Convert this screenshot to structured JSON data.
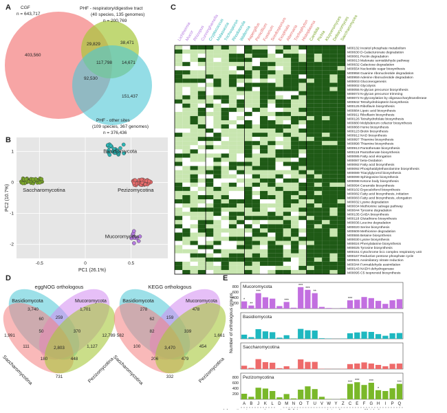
{
  "panels": {
    "a": "A",
    "b": "B",
    "c": "C",
    "d": "D",
    "e": "E"
  },
  "venn": {
    "sets": [
      {
        "label": "CGF",
        "count": "n = 643,717",
        "color": "#f47f7f"
      },
      {
        "label": "PHF - respiratory/digestive tract",
        "sub": "(40 species, 135 genomes)",
        "count": "n = 200,769",
        "color": "#a6c83a"
      },
      {
        "label": "PHF - other sites",
        "sub": "(109 species, 367 genomes)",
        "count": "n = 376,436",
        "color": "#4cc6d6"
      }
    ],
    "regions": {
      "cgf_only": "403,560",
      "phfr_only": "38,471",
      "phfo_only": "151,437",
      "cgf_phfr": "29,829",
      "cgf_phfo": "92,530",
      "phfr_phfo": "14,671",
      "all": "117,798"
    }
  },
  "pca": {
    "xlabel": "PC1 (26.1%)",
    "ylabel": "PC2 (10.7%)",
    "xticks": [
      "-0.5",
      "0",
      "0.5"
    ],
    "yticks": [
      "1",
      "0",
      "-1",
      "-2"
    ],
    "groups": [
      {
        "name": "Basidiomycota",
        "color": "#2cb5b5"
      },
      {
        "name": "Saccharomycotina",
        "color": "#7aa52a"
      },
      {
        "name": "Pezizomycotina",
        "color": "#e56b6b"
      },
      {
        "name": "Mucoromycota",
        "color": "#b57be0"
      }
    ]
  },
  "heatmap": {
    "modules": [
      "M00132 Inositol phosphate metabolism",
      "M00630 D-Galacturonate degradation",
      "M00081 Pectin degradation",
      "M00013 Malonate semialdehyde pathway",
      "M00632 Galactose degradation",
      "M00554 Nucleotide sugar biosynthesis",
      "M00958 Guanine ribonucleotide degradation",
      "M00959 Adenine ribonucleotide degradation",
      "M00003 Gluconeogenesis",
      "M00002 Glycolysis",
      "M00055 N-glycan precursor biosynthesis",
      "M00073 N-glycan precursor trimming",
      "M00072 N-glycosylation by oligosaccharyltransferase",
      "M00842 Tetrahydrobiopterin biosynthesis",
      "M00125 Riboflavin biosynthesis",
      "M00884 Lipoic acid biosynthesis",
      "M00911 Riboflavin biosynthesis",
      "M00126 Tetrahydrofolate biosynthesis",
      "M00880 Molybdenum cofactor biosynthesis",
      "M00868 Heme biosynthesis",
      "M00123 Biotin biosynthesis",
      "M00912 NAD biosynthesis",
      "M00897 Thiamine biosynthesis",
      "M00898 Thiamine biosynthesis",
      "M00913 Pantothenate biosynthesis",
      "M00119 Pantothenate biosynthesis",
      "M00085 Fatty acid elongation",
      "M00087 beta-Oxidation",
      "M00082 Fatty acid biosynthesis",
      "M00092 Phosphatidylethanolamine biosynthesis",
      "M00089 Triacylglycerol biosynthesis",
      "M00099 Sphingosine biosynthesis",
      "M00088 Ketone body biosynthesis",
      "M00094 Ceramide biosynthesis",
      "M00102 Ergocalciferol biosynthesis",
      "M00082 Fatty acid biosynthesis, initiation",
      "M00083 Fatty acid biosynthesis, elongation",
      "M00032 Lysine degradation",
      "M00034 Methionine salvage pathway",
      "M00044 Tyrosine degradation",
      "M00135 GABA biosynthesis",
      "M00118 Glutathione biosynthesis",
      "M00036 Leucine degradation",
      "M00020 Serine biosynthesis",
      "M00609 Methionine degradation",
      "M00555 Betaine biosynthesis",
      "M00030 Lysine biosynthesis",
      "M00024 Phenylalanine biosynthesis",
      "M00025 Tyrosine biosynthesis",
      "M00151 Cytochrome bc1 complex respiratory unit",
      "M00167 Reductive pentose phosphate cycle",
      "M00531 Assimilatory nitrate reduction",
      "M00344 Formaldehyde assimilation",
      "M00143 NADH dehydrogenase",
      "M00095 C5 isoprenoid biosynthesis"
    ],
    "col_labels": [
      {
        "t": "Lichtheimia",
        "c": "#b57be0"
      },
      {
        "t": "Mucor",
        "c": "#b57be0"
      },
      {
        "t": "Rhizopus",
        "c": "#b57be0"
      },
      {
        "t": "Cunninghamella",
        "c": "#b57be0"
      },
      {
        "t": "Cryptococcus",
        "c": "#2cb5b5"
      },
      {
        "t": "Malassezia",
        "c": "#2cb5b5"
      },
      {
        "t": "Trichosporon",
        "c": "#2cb5b5"
      },
      {
        "t": "Rhodotorula",
        "c": "#2cb5b5"
      },
      {
        "t": "Wallemia",
        "c": "#2cb5b5"
      },
      {
        "t": "Aspergillus",
        "c": "#e56b6b"
      },
      {
        "t": "Penicillium",
        "c": "#e56b6b"
      },
      {
        "t": "Fusarium",
        "c": "#e56b6b"
      },
      {
        "t": "Scedosporium",
        "c": "#e56b6b"
      },
      {
        "t": "Exophiala",
        "c": "#e56b6b"
      },
      {
        "t": "Alternaria",
        "c": "#e56b6b"
      },
      {
        "t": "Trichophyton",
        "c": "#e56b6b"
      },
      {
        "t": "Histoplasma",
        "c": "#e56b6b"
      },
      {
        "t": "Candida",
        "c": "#7aa52a"
      },
      {
        "t": "Pichia",
        "c": "#7aa52a"
      },
      {
        "t": "Kluyveromyces",
        "c": "#7aa52a"
      },
      {
        "t": "Debaryomyces",
        "c": "#7aa52a"
      },
      {
        "t": "Saccharomyces",
        "c": "#7aa52a"
      }
    ],
    "colors": {
      "present": "#1f5a16",
      "absent": "#c8e6b0",
      "empty": "#ffffff"
    }
  },
  "euler_left": {
    "title": "eggNOG orthologous",
    "labels": [
      "Basidiomycota",
      "Mucoromycota",
      "Saccharomycotina",
      "Pezizomycotina"
    ],
    "values": [
      "3,740",
      "1,701",
      "1,991",
      "60",
      "259",
      "12,789",
      "50",
      "370",
      "111",
      "2,803",
      "1,127",
      "180",
      "448",
      "731"
    ]
  },
  "euler_right": {
    "title": "KEGG orthologous",
    "labels": [
      "Basidiomycota",
      "Mucoromycota",
      "Saccharomycotina",
      "Pezizomycotina"
    ],
    "values": [
      "278",
      "478",
      "582",
      "62",
      "159",
      "1,661",
      "82",
      "339",
      "100",
      "3,470",
      "454",
      "206",
      "479",
      "332"
    ]
  },
  "chart_data": {
    "type": "bar",
    "categories": [
      "A",
      "B",
      "J",
      "K",
      "L",
      "D",
      "M",
      "N",
      "O",
      "T",
      "U",
      "V",
      "W",
      "Y",
      "Z",
      "C",
      "E",
      "F",
      "G",
      "H",
      "I",
      "P",
      "Q"
    ],
    "ylabel": "Number of orthologous groups",
    "series": [
      {
        "name": "Mucoromycota",
        "color": "#c26fe0",
        "values": [
          260,
          110,
          560,
          410,
          360,
          90,
          240,
          30,
          780,
          680,
          560,
          60,
          20,
          5,
          20,
          300,
          320,
          420,
          380,
          280,
          170,
          300,
          340
        ],
        "stars": [
          "*",
          "**",
          "***",
          "",
          "",
          "",
          "***",
          "",
          "***",
          "***",
          "**",
          "",
          "",
          "",
          "",
          "***",
          "",
          "",
          "",
          "",
          "",
          "",
          ""
        ]
      },
      {
        "name": "Basidiomycota",
        "color": "#1eb8c0",
        "values": [
          150,
          60,
          350,
          270,
          240,
          40,
          130,
          10,
          360,
          310,
          300,
          20,
          10,
          2,
          10,
          200,
          230,
          260,
          250,
          170,
          110,
          200,
          210
        ],
        "stars": []
      },
      {
        "name": "Saccharomycotina",
        "color": "#ee6b6b",
        "values": [
          120,
          40,
          360,
          250,
          230,
          30,
          100,
          10,
          350,
          260,
          260,
          10,
          5,
          2,
          10,
          180,
          200,
          240,
          200,
          150,
          100,
          190,
          200
        ],
        "stars": []
      },
      {
        "name": "Pezizomycotina",
        "color": "#7ab829",
        "values": [
          200,
          90,
          420,
          390,
          300,
          70,
          190,
          30,
          350,
          470,
          370,
          90,
          10,
          2,
          20,
          560,
          620,
          520,
          600,
          330,
          300,
          400,
          560
        ],
        "stars": [
          "",
          "",
          "",
          "",
          "",
          "",
          "",
          "",
          "",
          "",
          "",
          "",
          "",
          "",
          "",
          "***",
          "***",
          "",
          "***",
          "*",
          "",
          "",
          "***"
        ]
      }
    ],
    "group_labels": [
      "Information storage and processing",
      "Cellular processes and signaling",
      "Metabolism"
    ],
    "yticks": [
      "200",
      "400",
      "600",
      "800"
    ]
  }
}
